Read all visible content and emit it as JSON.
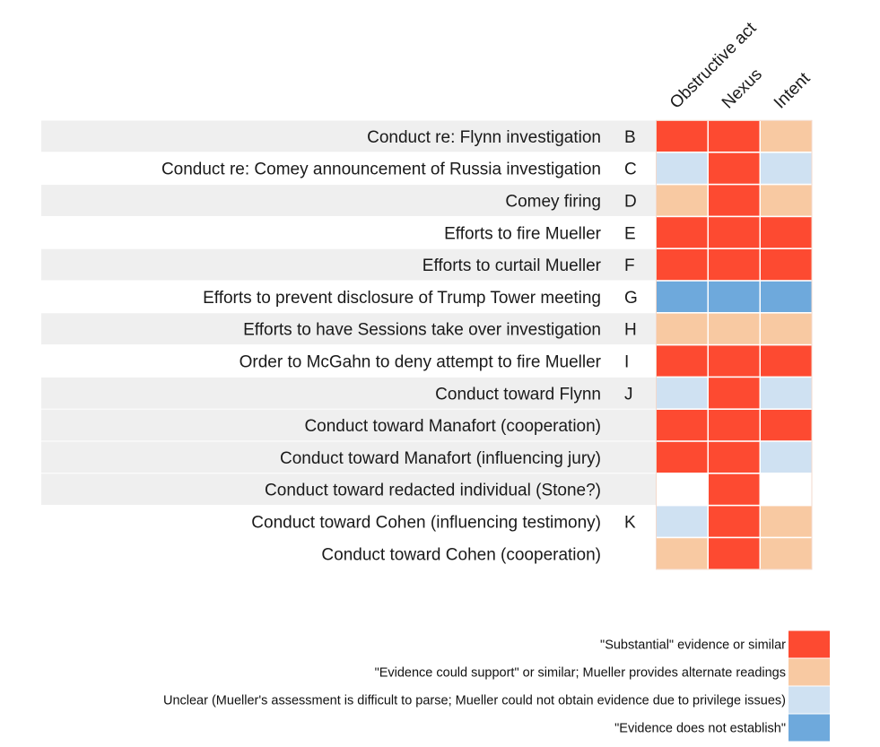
{
  "chart_data": {
    "type": "heatmap",
    "columns": [
      "Obstructive act",
      "Nexus",
      "Intent"
    ],
    "rows": [
      {
        "label": "Conduct re: Flynn investigation",
        "code": "B",
        "values": [
          "substantial",
          "substantial",
          "could_support"
        ]
      },
      {
        "label": "Conduct re: Comey announcement of Russia investigation",
        "code": "C",
        "values": [
          "unclear",
          "substantial",
          "unclear"
        ]
      },
      {
        "label": "Comey firing",
        "code": "D",
        "values": [
          "could_support",
          "substantial",
          "could_support"
        ]
      },
      {
        "label": "Efforts to fire Mueller",
        "code": "E",
        "values": [
          "substantial",
          "substantial",
          "substantial"
        ]
      },
      {
        "label": "Efforts to curtail Mueller",
        "code": "F",
        "values": [
          "substantial",
          "substantial",
          "substantial"
        ]
      },
      {
        "label": "Efforts to prevent disclosure of Trump Tower meeting",
        "code": "G",
        "values": [
          "does_not_establish",
          "does_not_establish",
          "does_not_establish"
        ]
      },
      {
        "label": "Efforts to have Sessions take over investigation",
        "code": "H",
        "values": [
          "could_support",
          "could_support",
          "could_support"
        ]
      },
      {
        "label": "Order to McGahn to deny attempt to fire Mueller",
        "code": "I",
        "values": [
          "substantial",
          "substantial",
          "substantial"
        ]
      },
      {
        "label": "Conduct toward Flynn",
        "code": "J",
        "values": [
          "unclear",
          "substantial",
          "unclear"
        ]
      },
      {
        "label": "Conduct toward Manafort (cooperation)",
        "code": "",
        "values": [
          "substantial",
          "substantial",
          "substantial"
        ]
      },
      {
        "label": "Conduct toward Manafort (influencing jury)",
        "code": "",
        "values": [
          "substantial",
          "substantial",
          "unclear"
        ]
      },
      {
        "label": "Conduct toward redacted individual (Stone?)",
        "code": "",
        "values": [
          "none",
          "substantial",
          "none"
        ]
      },
      {
        "label": "Conduct toward Cohen (influencing testimony)",
        "code": "K",
        "values": [
          "unclear",
          "substantial",
          "could_support"
        ]
      },
      {
        "label": "Conduct toward Cohen (cooperation)",
        "code": "",
        "values": [
          "could_support",
          "substantial",
          "could_support"
        ]
      }
    ],
    "row_shading": [
      true,
      false,
      true,
      false,
      true,
      false,
      true,
      false,
      true,
      true,
      true,
      true,
      false,
      false
    ],
    "legend": [
      {
        "key": "substantial",
        "label": "\"Substantial\" evidence or similar",
        "color": "#fd4a31"
      },
      {
        "key": "could_support",
        "label": "\"Evidence could support\" or similar; Mueller provides alternate readings",
        "color": "#f8c9a2"
      },
      {
        "key": "unclear",
        "label": "Unclear (Mueller's assessment is difficult to parse; Mueller could not obtain evidence due to privilege issues)",
        "color": "#cfe1f2"
      },
      {
        "key": "does_not_establish",
        "label": "\"Evidence does not establish\"",
        "color": "#6ea9dc"
      }
    ],
    "legend_placement": "bottom-right",
    "colors": {
      "none": "#ffffff",
      "row_band": "#efefef",
      "grid_line": "#f3d9cc"
    }
  }
}
